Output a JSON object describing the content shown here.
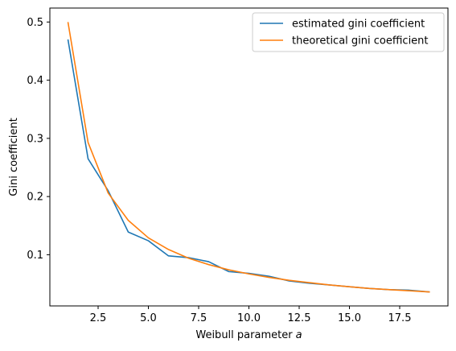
{
  "chart_data": {
    "type": "line",
    "title": "",
    "xlabel": "Weibull parameter ",
    "xlabel_symbol": "a",
    "ylabel": "Gini coefficient",
    "xlim": [
      0.1,
      19.9
    ],
    "ylim": [
      0.012,
      0.524
    ],
    "xticks": [
      2.5,
      5.0,
      7.5,
      10.0,
      12.5,
      15.0,
      17.5
    ],
    "xtick_labels": [
      "2.5",
      "5.0",
      "7.5",
      "10.0",
      "12.5",
      "15.0",
      "17.5"
    ],
    "yticks": [
      0.1,
      0.2,
      0.3,
      0.4,
      0.5
    ],
    "ytick_labels": [
      "0.1",
      "0.2",
      "0.3",
      "0.4",
      "0.5"
    ],
    "grid": false,
    "legend_position": "top-right",
    "x": [
      1,
      2,
      3,
      4,
      5,
      6,
      7,
      8,
      9,
      10,
      11,
      12,
      13,
      14,
      15,
      16,
      17,
      18,
      19
    ],
    "series": [
      {
        "name": "estimated gini coefficient",
        "color": "#1f77b4",
        "values": [
          0.47,
          0.265,
          0.21,
          0.139,
          0.124,
          0.098,
          0.095,
          0.088,
          0.071,
          0.068,
          0.063,
          0.055,
          0.051,
          0.048,
          0.045,
          0.042,
          0.04,
          0.039,
          0.036
        ]
      },
      {
        "name": "theoretical gini coefficient",
        "color": "#ff7f0e",
        "values": [
          0.5,
          0.293,
          0.206,
          0.159,
          0.129,
          0.109,
          0.094,
          0.083,
          0.074,
          0.067,
          0.061,
          0.056,
          0.052,
          0.048,
          0.045,
          0.042,
          0.04,
          0.038,
          0.036
        ]
      }
    ]
  }
}
